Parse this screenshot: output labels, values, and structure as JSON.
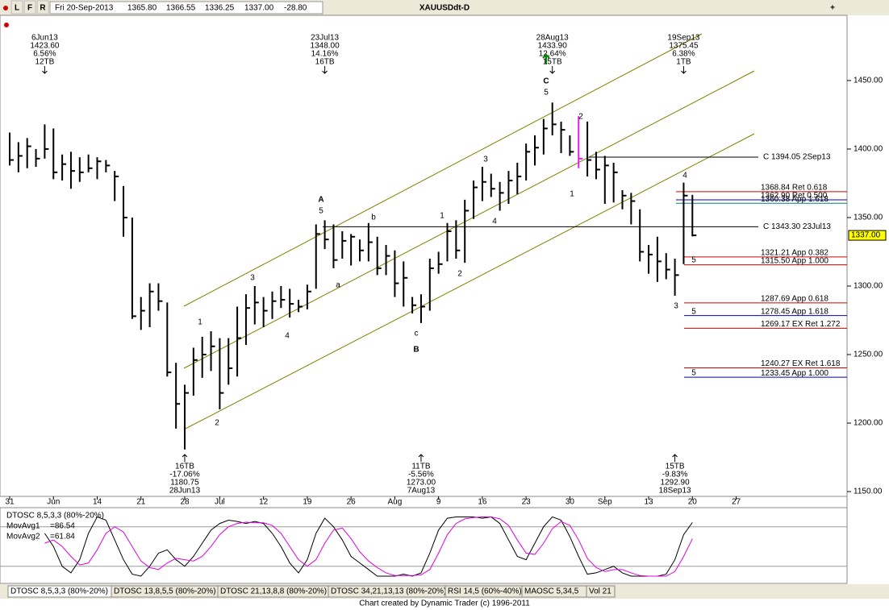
{
  "toolbar": {
    "buttons": [
      "L",
      "F",
      "R"
    ]
  },
  "header": {
    "date": "Fri 20-Sep-2013",
    "open": "1365.80",
    "high": "1366.55",
    "low": "1336.25",
    "close": "1337.00",
    "change": "-28.80"
  },
  "title": "XAUUSDdt-D",
  "chart_data": [
    {
      "type": "ohlc",
      "categories": [
        "31",
        null,
        null,
        null,
        null,
        "Jun",
        null,
        null,
        null,
        null,
        "14",
        null,
        null,
        null,
        null,
        "21",
        null,
        null,
        null,
        null,
        "28",
        null,
        null,
        null,
        "Jul",
        null,
        null,
        null,
        null,
        "12",
        null,
        null,
        null,
        null,
        "19",
        null,
        null,
        null,
        null,
        "26",
        null,
        null,
        null,
        null,
        "Aug",
        null,
        null,
        null,
        null,
        "9",
        null,
        null,
        null,
        null,
        "16",
        null,
        null,
        null,
        null,
        "23",
        null,
        null,
        null,
        null,
        "30",
        null,
        null,
        null,
        "Sep",
        null,
        null,
        null,
        null,
        "13",
        null,
        null,
        null,
        null,
        "20",
        null,
        null,
        null,
        null,
        "27"
      ],
      "high": [
        1412,
        1405,
        1408,
        1400,
        1418,
        1415,
        1396,
        1398,
        1394,
        1396,
        1394,
        1392,
        1384,
        1373,
        1350,
        1292,
        1302,
        1302,
        1288,
        1244,
        1228,
        1255,
        1263,
        1267,
        1262,
        1262,
        1285,
        1294,
        1300,
        1292,
        1296,
        1300,
        1298,
        1290,
        1301,
        1345,
        1348,
        1345,
        1340,
        1338,
        1334,
        1346,
        1336,
        1330,
        1326,
        1318,
        1292,
        1294,
        1320,
        1325,
        1346,
        1348,
        1363,
        1377,
        1387,
        1382,
        1376,
        1384,
        1390,
        1404,
        1410,
        1422,
        1433.9,
        1420,
        1410,
        1424,
        1420,
        1398,
        1395,
        1390,
        1370,
        1368,
        1356,
        1330,
        1336,
        1324,
        1320,
        1375.45,
        1366.55,
        null,
        null,
        null,
        null,
        null
      ],
      "low": [
        1388,
        1383,
        1386,
        1387,
        1393,
        1378,
        1377,
        1371,
        1376,
        1383,
        1378,
        1383,
        1362,
        1336,
        1276,
        1268,
        1270,
        1282,
        1234,
        1196,
        1180.75,
        1220,
        1233,
        1238,
        1210,
        1228,
        1234,
        1257,
        1272,
        1270,
        1276,
        1284,
        1277,
        1281,
        1283,
        1298,
        1327,
        1313,
        1320,
        1315,
        1318,
        1318,
        1308,
        1308,
        1292,
        1285,
        1280,
        1273,
        1282,
        1309,
        1318,
        1320,
        1317,
        1349,
        1362,
        1365,
        1355,
        1360,
        1367,
        1377,
        1388,
        1396,
        1410,
        1397,
        1395,
        1386,
        1380,
        1378,
        1360,
        1361,
        1356,
        1345,
        1318,
        1309,
        1303,
        1305,
        1292.9,
        1316,
        1336.25,
        null,
        null,
        null,
        null,
        null
      ],
      "close": [
        1392,
        1395,
        1402,
        1393,
        1400,
        1383,
        1389,
        1384,
        1383,
        1386,
        1391,
        1388,
        1380,
        1350,
        1278,
        1282,
        1296,
        1289,
        1237,
        1214,
        1222,
        1246,
        1250,
        1256,
        1222,
        1240,
        1262,
        1284,
        1288,
        1282,
        1289,
        1290,
        1287,
        1285,
        1296,
        1338,
        1334,
        1319,
        1333,
        1336,
        1326,
        1332,
        1313,
        1322,
        1302,
        1306,
        1286,
        1285,
        1313,
        1316,
        1340,
        1326,
        1355,
        1372,
        1376,
        1371,
        1368,
        1377,
        1380,
        1398,
        1401,
        1415,
        1418,
        1414,
        1398,
        1393,
        1392,
        1385,
        1388,
        1383,
        1366,
        1362,
        1325,
        1323,
        1318,
        1312,
        1308,
        1366,
        1337,
        null,
        null,
        null,
        null,
        null
      ],
      "highlight": {
        "index": 65,
        "color": "#e020e0"
      },
      "color": "#000000",
      "ylim": [
        1146.5,
        1497
      ],
      "yticks": [
        {
          "value": 1150,
          "label": "1150.00"
        },
        {
          "value": 1200,
          "label": "1200.00"
        },
        {
          "value": 1250,
          "label": "1250.00"
        },
        {
          "value": 1300,
          "label": "1300.00"
        },
        {
          "value": 1350,
          "label": "1350.00"
        },
        {
          "value": 1400,
          "label": "1400.00"
        },
        {
          "value": 1450,
          "label": "1450.00"
        }
      ],
      "last_price": {
        "value": 1337,
        "label": "1337.00"
      },
      "levels": [
        {
          "value": 1394.05,
          "label": "C 1394.05 2Sep13",
          "color": "#000000"
        },
        {
          "value": 1343.3,
          "label": "C 1343.30 23Jul13",
          "color": "#000000"
        },
        {
          "value": 1368.84,
          "label": "1368.84 Ret 0.618",
          "color": "#d00000"
        },
        {
          "value": 1362.9,
          "label": "1362.90 Ret 0.500",
          "color": "#0000c0"
        },
        {
          "value": 1360.38,
          "label": "1360.38 App 1.618",
          "color": "#008080"
        },
        {
          "value": 1321.21,
          "label": "1321.21 App 0.382",
          "color": "#d00000"
        },
        {
          "value": 1315.5,
          "label": "1315.50 App 1.000",
          "color": "#d00000"
        },
        {
          "value": 1287.69,
          "label": "1287.69 App 0.618",
          "color": "#d00000"
        },
        {
          "value": 1278.45,
          "label": "1278.45 App 1.618",
          "color": "#0000c0"
        },
        {
          "value": 1269.17,
          "label": "1269.17 EX Ret 1.272",
          "color": "#d00000"
        },
        {
          "value": 1240.27,
          "label": "1240.27 EX Ret 1.618",
          "color": "#d00000"
        },
        {
          "value": 1233.45,
          "label": "1233.45 App 1.000",
          "color": "#0000c0"
        }
      ],
      "pivots": [
        {
          "lines": [
            "6Jun13",
            "1423.60",
            "6.56%",
            "12TB"
          ]
        },
        {
          "lines": [
            "23Jul13",
            "1348.00",
            "14.16%",
            "16TB"
          ]
        },
        {
          "lines": [
            "28Aug13",
            "1433.90",
            "12.64%",
            "15TB"
          ]
        },
        {
          "lines": [
            "19Sep13",
            "1375.45",
            "6.38%",
            "1TB"
          ]
        },
        {
          "lines": [
            "16TB",
            "-17.06%",
            "1180.75",
            "28Jun13"
          ]
        },
        {
          "lines": [
            "11TB",
            "-5.56%",
            "1273.00",
            "7Aug13"
          ]
        },
        {
          "lines": [
            "15TB",
            "-9.83%",
            "1292.90",
            "18Sep13"
          ]
        }
      ],
      "waves": [
        "1",
        "2",
        "3",
        "4",
        "5",
        "A",
        "a",
        "b",
        "c",
        "B",
        "1",
        "2",
        "3",
        "4",
        "5",
        "C",
        "2",
        "1",
        "4",
        "3",
        "5",
        "5",
        "5"
      ]
    },
    {
      "type": "line",
      "title": "DTOSC 8,5,3,3 (80%-20%)",
      "series": [
        {
          "name": "MovAvg1",
          "readout": "=86.54",
          "color": "#000000",
          "values": [
            null,
            null,
            null,
            null,
            70,
            50,
            20,
            10,
            30,
            70,
            95,
            90,
            60,
            30,
            8,
            5,
            20,
            40,
            45,
            30,
            20,
            35,
            55,
            75,
            85,
            90,
            88,
            85,
            88,
            85,
            70,
            50,
            25,
            10,
            30,
            70,
            93,
            80,
            60,
            35,
            25,
            15,
            5,
            5,
            5,
            8,
            5,
            10,
            40,
            75,
            93,
            95,
            95,
            95,
            93,
            95,
            85,
            60,
            35,
            30,
            55,
            80,
            95,
            90,
            65,
            35,
            8,
            10,
            15,
            20,
            10,
            5,
            5,
            5,
            5,
            8,
            30,
            68,
            86.54,
            null,
            null,
            null,
            null,
            null
          ]
        },
        {
          "name": "MovAvg2",
          "readout": "=61.84",
          "color": "#e000e0",
          "values": [
            null,
            null,
            null,
            null,
            55,
            60,
            50,
            35,
            22,
            25,
            45,
            70,
            80,
            72,
            50,
            28,
            18,
            15,
            25,
            32,
            30,
            28,
            35,
            50,
            68,
            80,
            85,
            87,
            86,
            86,
            82,
            70,
            50,
            30,
            20,
            30,
            55,
            75,
            78,
            62,
            42,
            28,
            18,
            10,
            6,
            6,
            6,
            7,
            15,
            40,
            68,
            85,
            92,
            94,
            95,
            95,
            92,
            82,
            60,
            40,
            38,
            55,
            77,
            88,
            82,
            60,
            32,
            18,
            12,
            15,
            15,
            10,
            6,
            5,
            5,
            5,
            12,
            35,
            61.84,
            null,
            null,
            null,
            null,
            null
          ]
        }
      ],
      "ylim": [
        -6,
        109
      ],
      "bands": [
        80,
        20
      ]
    }
  ],
  "tabs": [
    "DTOSC 8,5,3,3 (80%-20%)",
    "DTOSC 13,8,5,5 (80%-20%)",
    "DTOSC 21,13,8,8 (80%-20%)",
    "DTOSC 34,21,13,13 (80%-20%)",
    "RSI 14,5 (60%-40%)",
    "MAOSC 5,34,5",
    "Vol 21"
  ],
  "footer": "Chart created by Dynamic Trader  (c)  1996-2011"
}
